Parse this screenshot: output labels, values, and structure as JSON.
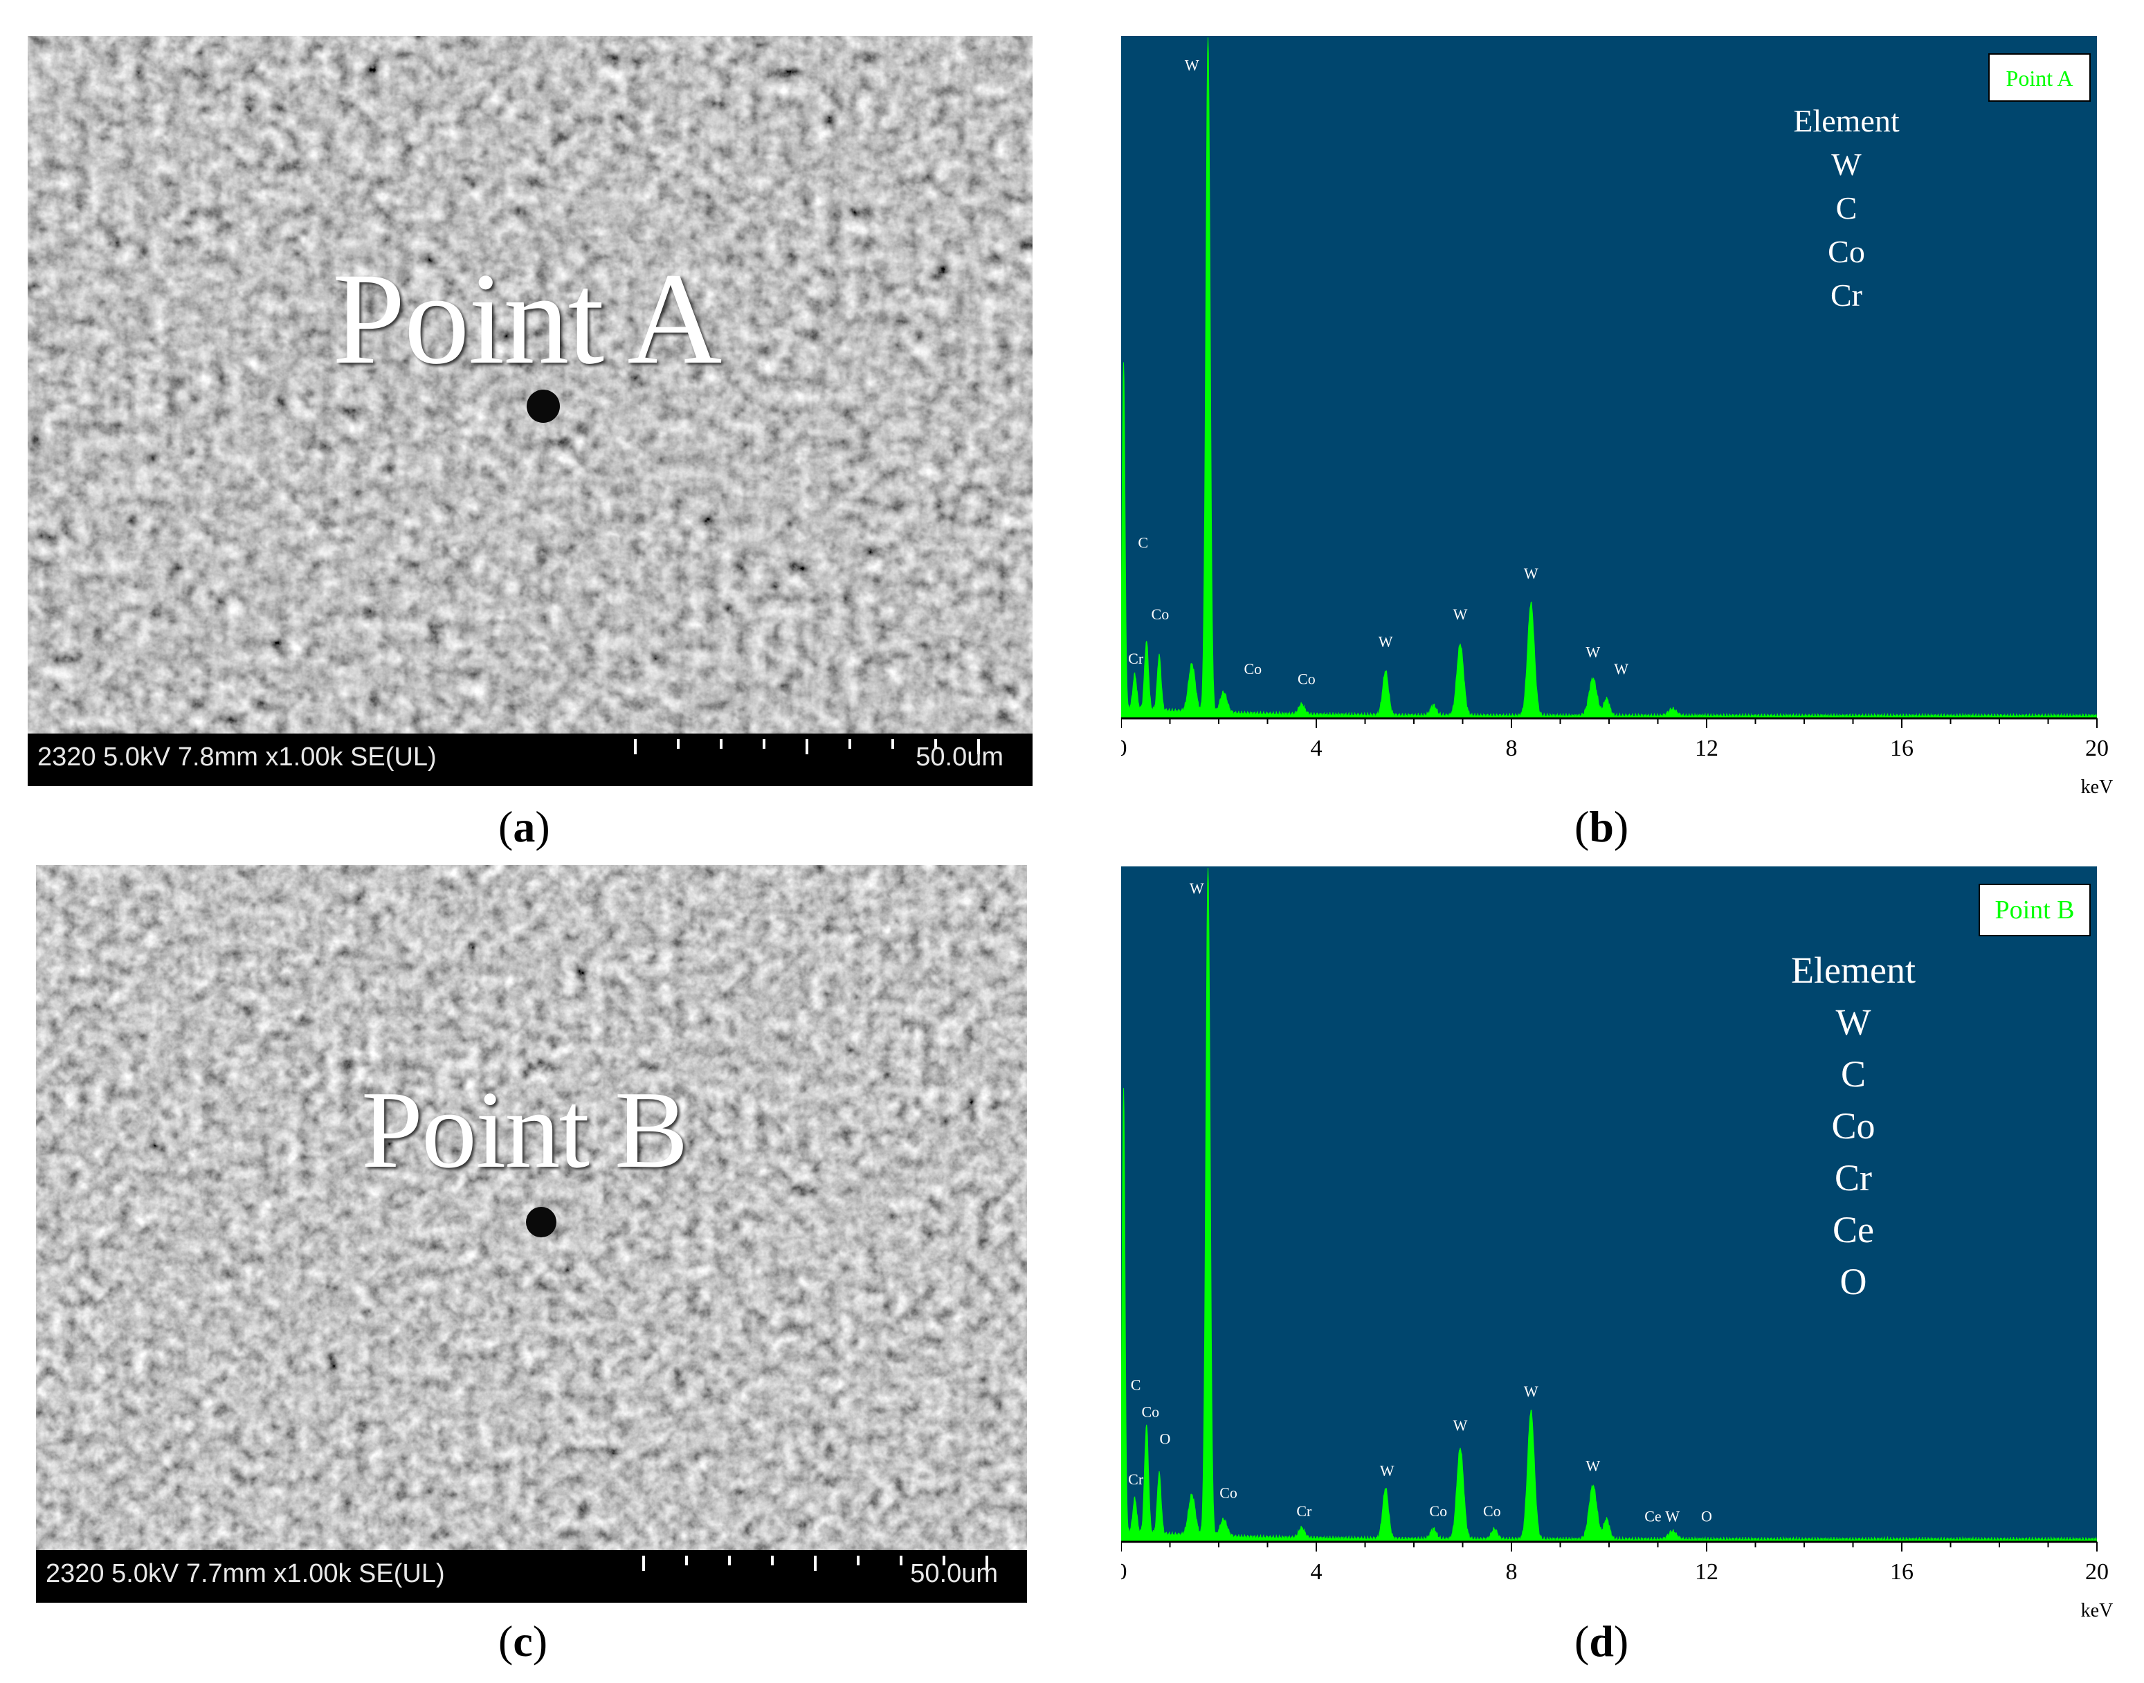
{
  "panels": [
    {
      "sem_label": "Point A",
      "sem_info": "2320 5.0kV 7.8mm x1.00k SE(UL)",
      "scale_bar": "50.0um",
      "caption_letter": "a"
    },
    {
      "sem_label": "Point B",
      "sem_info": "2320 5.0kV 7.7mm x1.00k SE(UL)",
      "scale_bar": "50.0um",
      "caption_letter": "c"
    }
  ],
  "captions": {
    "b": "b",
    "d": "d"
  },
  "colors": {
    "plot_bg": "#00466e",
    "spectrum": "#00ff00",
    "element_text": "#ffffff"
  },
  "chart_data": [
    {
      "type": "area",
      "legend": "Point A",
      "legend_position": "top-right",
      "element_title": "Element",
      "elements": [
        "W",
        "C",
        "Co",
        "Cr"
      ],
      "xlabel": "keV",
      "xlim": [
        0,
        20
      ],
      "xticks": [
        0,
        4,
        8,
        12,
        16,
        20
      ],
      "ylim": [
        0,
        100
      ],
      "grid": false,
      "peaks": [
        {
          "x": 0.05,
          "y": 51,
          "w": 0.03
        },
        {
          "x": 0.28,
          "y": 5,
          "w": 0.04
        },
        {
          "x": 0.52,
          "y": 10,
          "w": 0.04
        },
        {
          "x": 0.78,
          "y": 8,
          "w": 0.04
        },
        {
          "x": 1.45,
          "y": 7,
          "w": 0.07
        },
        {
          "x": 1.78,
          "y": 99,
          "w": 0.045
        },
        {
          "x": 2.1,
          "y": 3,
          "w": 0.07
        },
        {
          "x": 3.7,
          "y": 1.5,
          "w": 0.06
        },
        {
          "x": 5.42,
          "y": 6.5,
          "w": 0.06
        },
        {
          "x": 6.4,
          "y": 1.5,
          "w": 0.06
        },
        {
          "x": 6.95,
          "y": 10.5,
          "w": 0.07
        },
        {
          "x": 8.4,
          "y": 16.5,
          "w": 0.07
        },
        {
          "x": 9.67,
          "y": 5.5,
          "w": 0.08
        },
        {
          "x": 9.95,
          "y": 2.5,
          "w": 0.06
        },
        {
          "x": 11.3,
          "y": 1,
          "w": 0.08
        }
      ],
      "peak_labels": [
        {
          "text": "W",
          "x": 1.45,
          "y": 95
        },
        {
          "text": "C",
          "x": 0.45,
          "y": 25
        },
        {
          "text": "Co",
          "x": 0.8,
          "y": 14.5
        },
        {
          "text": "Cr",
          "x": 0.3,
          "y": 8
        },
        {
          "text": "Co",
          "x": 2.7,
          "y": 6.5
        },
        {
          "text": "Co",
          "x": 3.8,
          "y": 5
        },
        {
          "text": "W",
          "x": 5.42,
          "y": 10.5
        },
        {
          "text": "W",
          "x": 6.95,
          "y": 14.5
        },
        {
          "text": "W",
          "x": 8.4,
          "y": 20.5
        },
        {
          "text": "W",
          "x": 9.67,
          "y": 9
        },
        {
          "text": "W",
          "x": 10.25,
          "y": 6.5
        }
      ]
    },
    {
      "type": "area",
      "legend": "Point B",
      "legend_position": "top-right",
      "element_title": "Element",
      "elements": [
        "W",
        "C",
        "Co",
        "Cr",
        "Ce",
        "O"
      ],
      "xlabel": "keV",
      "xlim": [
        0,
        20
      ],
      "xticks": [
        0,
        4,
        8,
        12,
        16,
        20
      ],
      "ylim": [
        0,
        100
      ],
      "grid": false,
      "peaks": [
        {
          "x": 0.05,
          "y": 66,
          "w": 0.03
        },
        {
          "x": 0.28,
          "y": 5,
          "w": 0.04
        },
        {
          "x": 0.52,
          "y": 16,
          "w": 0.04
        },
        {
          "x": 0.78,
          "y": 9,
          "w": 0.04
        },
        {
          "x": 1.45,
          "y": 6,
          "w": 0.07
        },
        {
          "x": 1.78,
          "y": 99,
          "w": 0.045
        },
        {
          "x": 2.1,
          "y": 2.5,
          "w": 0.07
        },
        {
          "x": 3.7,
          "y": 1.5,
          "w": 0.06
        },
        {
          "x": 5.42,
          "y": 7.5,
          "w": 0.06
        },
        {
          "x": 6.4,
          "y": 1.5,
          "w": 0.06
        },
        {
          "x": 6.95,
          "y": 13.5,
          "w": 0.07
        },
        {
          "x": 7.65,
          "y": 1.5,
          "w": 0.06
        },
        {
          "x": 8.4,
          "y": 19,
          "w": 0.07
        },
        {
          "x": 9.67,
          "y": 8,
          "w": 0.08
        },
        {
          "x": 9.95,
          "y": 3,
          "w": 0.06
        },
        {
          "x": 11.3,
          "y": 1.2,
          "w": 0.08
        }
      ],
      "peak_labels": [
        {
          "text": "W",
          "x": 1.55,
          "y": 96
        },
        {
          "text": "C",
          "x": 0.3,
          "y": 22.5
        },
        {
          "text": "Co",
          "x": 0.6,
          "y": 18.5
        },
        {
          "text": "O",
          "x": 0.9,
          "y": 14.5
        },
        {
          "text": "Cr",
          "x": 0.3,
          "y": 8.5
        },
        {
          "text": "Co",
          "x": 2.2,
          "y": 6.5
        },
        {
          "text": "Cr",
          "x": 3.75,
          "y": 3.8
        },
        {
          "text": "W",
          "x": 5.45,
          "y": 9.8
        },
        {
          "text": "Co",
          "x": 6.5,
          "y": 3.8
        },
        {
          "text": "Co",
          "x": 7.6,
          "y": 3.8
        },
        {
          "text": "W",
          "x": 6.95,
          "y": 16.5
        },
        {
          "text": "W",
          "x": 8.4,
          "y": 21.5
        },
        {
          "text": "W",
          "x": 9.67,
          "y": 10.5
        },
        {
          "text": "Ce",
          "x": 10.9,
          "y": 3
        },
        {
          "text": "W",
          "x": 11.3,
          "y": 3
        },
        {
          "text": "O",
          "x": 12.0,
          "y": 3
        }
      ]
    }
  ]
}
